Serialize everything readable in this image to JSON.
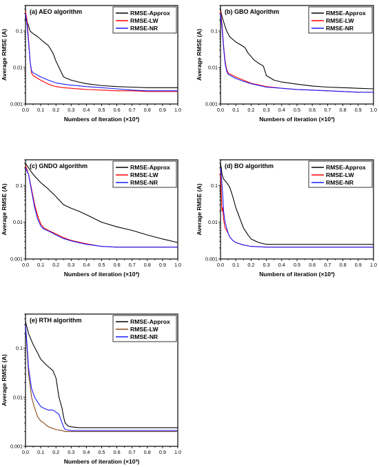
{
  "chart_data": [
    {
      "type": "line",
      "title": "(a)   AEO algorithm",
      "xlabel": "Numbers of Iteration (×10³)",
      "ylabel": "Average RMSE (A)",
      "xlim": [
        0,
        1.0
      ],
      "ylim": [
        0.001,
        0.5
      ],
      "yscale": "log",
      "xticks": [
        "0.0",
        "0.1",
        "0.2",
        "0.3",
        "0.4",
        "0.5",
        "0.6",
        "0.7",
        "0.8",
        "0.9",
        "1.0"
      ],
      "yticks": [
        "0.001",
        "0.01",
        "0.1"
      ],
      "legend_position": "top-right",
      "series": [
        {
          "name": "RMSE-Approx",
          "color": "#000000",
          "x": [
            0,
            0.005,
            0.01,
            0.02,
            0.03,
            0.05,
            0.08,
            0.12,
            0.15,
            0.18,
            0.2,
            0.22,
            0.25,
            0.3,
            0.35,
            0.4,
            0.5,
            0.6,
            0.7,
            0.8,
            0.9,
            1.0
          ],
          "y": [
            0.4,
            0.2,
            0.18,
            0.14,
            0.1,
            0.085,
            0.07,
            0.05,
            0.04,
            0.025,
            0.015,
            0.01,
            0.0055,
            0.0045,
            0.004,
            0.0036,
            0.0032,
            0.003,
            0.0029,
            0.0028,
            0.0028,
            0.0028
          ]
        },
        {
          "name": "RMSE-LW",
          "color": "#ff0000",
          "x": [
            0,
            0.01,
            0.02,
            0.03,
            0.04,
            0.05,
            0.1,
            0.15,
            0.2,
            0.25,
            0.3,
            0.4,
            0.5,
            0.6,
            0.7,
            0.8,
            0.9,
            1.0
          ],
          "y": [
            0.35,
            0.2,
            0.06,
            0.015,
            0.007,
            0.006,
            0.0045,
            0.0035,
            0.003,
            0.0028,
            0.0027,
            0.0025,
            0.0024,
            0.0023,
            0.0023,
            0.0022,
            0.0022,
            0.0022
          ]
        },
        {
          "name": "RMSE-NR",
          "color": "#1a1aff",
          "x": [
            0,
            0.01,
            0.02,
            0.03,
            0.04,
            0.05,
            0.1,
            0.15,
            0.2,
            0.25,
            0.3,
            0.4,
            0.5,
            0.6,
            0.7,
            0.8,
            0.9,
            1.0
          ],
          "y": [
            0.3,
            0.15,
            0.05,
            0.015,
            0.008,
            0.0072,
            0.0055,
            0.0045,
            0.0038,
            0.0035,
            0.0033,
            0.003,
            0.0028,
            0.0026,
            0.0024,
            0.0023,
            0.0023,
            0.0023
          ]
        }
      ]
    },
    {
      "type": "line",
      "title": "(b)   GBO Algorithm",
      "xlabel": "Numbers of iteration (×10³)",
      "ylabel": "Average RMSE (A)",
      "xlim": [
        0,
        1.0
      ],
      "ylim": [
        0.001,
        0.5
      ],
      "yscale": "log",
      "xticks": [
        "0.0",
        "0.1",
        "0.2",
        "0.3",
        "0.4",
        "0.5",
        "0.6",
        "0.7",
        "0.8",
        "0.9",
        "1.0"
      ],
      "yticks": [
        "0.001",
        "0.01",
        "0.1"
      ],
      "legend_position": "top-right",
      "series": [
        {
          "name": "RMSE-Approx",
          "color": "#000000",
          "x": [
            0,
            0.005,
            0.01,
            0.02,
            0.04,
            0.06,
            0.1,
            0.14,
            0.16,
            0.18,
            0.2,
            0.22,
            0.25,
            0.28,
            0.3,
            0.35,
            0.4,
            0.5,
            0.6,
            0.7,
            0.8,
            0.9,
            1.0
          ],
          "y": [
            0.4,
            0.3,
            0.25,
            0.18,
            0.1,
            0.07,
            0.05,
            0.04,
            0.035,
            0.025,
            0.02,
            0.016,
            0.013,
            0.011,
            0.006,
            0.0045,
            0.004,
            0.0035,
            0.0031,
            0.0029,
            0.0028,
            0.0027,
            0.0026
          ]
        },
        {
          "name": "RMSE-LW",
          "color": "#ff0000",
          "x": [
            0,
            0.01,
            0.02,
            0.03,
            0.04,
            0.05,
            0.1,
            0.15,
            0.2,
            0.3,
            0.4,
            0.5,
            0.6,
            0.7,
            0.8,
            0.9,
            1.0
          ],
          "y": [
            0.35,
            0.15,
            0.04,
            0.015,
            0.009,
            0.007,
            0.0055,
            0.0045,
            0.0037,
            0.003,
            0.0027,
            0.0025,
            0.0024,
            0.0023,
            0.0022,
            0.0021,
            0.0021
          ]
        },
        {
          "name": "RMSE-NR",
          "color": "#1a1aff",
          "x": [
            0,
            0.01,
            0.02,
            0.03,
            0.04,
            0.05,
            0.1,
            0.15,
            0.2,
            0.3,
            0.4,
            0.5,
            0.6,
            0.7,
            0.8,
            0.9,
            1.0
          ],
          "y": [
            0.3,
            0.12,
            0.035,
            0.013,
            0.008,
            0.0065,
            0.005,
            0.0042,
            0.0036,
            0.0029,
            0.0027,
            0.0025,
            0.0024,
            0.0023,
            0.0022,
            0.0021,
            0.0021
          ]
        }
      ]
    },
    {
      "type": "line",
      "title": "(c)   GNDO algorithm",
      "xlabel": "Numbers of iteration (×10³)",
      "ylabel": "Average RMSE (A)",
      "xlim": [
        0,
        1.0
      ],
      "ylim": [
        0.001,
        0.5
      ],
      "yscale": "log",
      "xticks": [
        "0.0",
        "0.1",
        "0.2",
        "0.3",
        "0.4",
        "0.5",
        "0.6",
        "0.7",
        "0.8",
        "0.9",
        "1.0"
      ],
      "yticks": [
        "0.001",
        "0.01",
        "0.1"
      ],
      "legend_position": "top-right",
      "series": [
        {
          "name": "RMSE-Approx",
          "color": "#000000",
          "x": [
            0,
            0.02,
            0.05,
            0.1,
            0.15,
            0.2,
            0.25,
            0.3,
            0.35,
            0.4,
            0.5,
            0.6,
            0.7,
            0.8,
            0.9,
            1.0
          ],
          "y": [
            0.4,
            0.3,
            0.2,
            0.12,
            0.08,
            0.05,
            0.03,
            0.024,
            0.02,
            0.016,
            0.01,
            0.0075,
            0.006,
            0.0045,
            0.0035,
            0.0028
          ]
        },
        {
          "name": "RMSE-LW",
          "color": "#ff0000",
          "x": [
            0,
            0.02,
            0.04,
            0.06,
            0.08,
            0.1,
            0.12,
            0.15,
            0.2,
            0.25,
            0.3,
            0.4,
            0.5,
            0.6,
            0.7,
            0.8,
            0.9,
            1.0
          ],
          "y": [
            0.35,
            0.2,
            0.08,
            0.03,
            0.015,
            0.009,
            0.007,
            0.006,
            0.0048,
            0.0038,
            0.0032,
            0.0026,
            0.0022,
            0.0021,
            0.0021,
            0.0021,
            0.0021,
            0.0021
          ]
        },
        {
          "name": "RMSE-NR",
          "color": "#1a1aff",
          "x": [
            0,
            0.02,
            0.04,
            0.06,
            0.08,
            0.1,
            0.12,
            0.15,
            0.2,
            0.25,
            0.3,
            0.4,
            0.5,
            0.6,
            0.7,
            0.8,
            0.9,
            1.0
          ],
          "y": [
            0.3,
            0.2,
            0.07,
            0.025,
            0.012,
            0.008,
            0.0065,
            0.0058,
            0.0045,
            0.0036,
            0.0031,
            0.0025,
            0.0022,
            0.0021,
            0.0021,
            0.0021,
            0.0021,
            0.0021
          ]
        }
      ]
    },
    {
      "type": "line",
      "title": "(d)   BO algorithm",
      "xlabel": "Numbers of iteration (×10³)",
      "ylabel": "Average RMSE (A)",
      "xlim": [
        0,
        1.0
      ],
      "ylim": [
        0.001,
        0.5
      ],
      "yscale": "log",
      "xticks": [
        "0.0",
        "0.1",
        "0.2",
        "0.3",
        "0.4",
        "0.5",
        "0.6",
        "0.7",
        "0.8",
        "0.9",
        "1.0"
      ],
      "yticks": [
        "0.001",
        "0.01",
        "0.1"
      ],
      "legend_position": "top-right",
      "series": [
        {
          "name": "RMSE-Approx",
          "color": "#000000",
          "x": [
            0,
            0.005,
            0.01,
            0.02,
            0.04,
            0.06,
            0.08,
            0.1,
            0.12,
            0.15,
            0.18,
            0.2,
            0.25,
            0.3,
            0.4,
            0.5,
            0.6,
            0.7,
            0.8,
            0.9,
            1.0
          ],
          "y": [
            0.4,
            0.3,
            0.2,
            0.15,
            0.12,
            0.09,
            0.05,
            0.025,
            0.015,
            0.007,
            0.0045,
            0.0035,
            0.0028,
            0.0025,
            0.0025,
            0.0025,
            0.0025,
            0.0025,
            0.0025,
            0.0025,
            0.0025
          ]
        },
        {
          "name": "RMSE-LW",
          "color": "#ff0000",
          "x": [
            0,
            0.005,
            0.01,
            0.015,
            0.02,
            0.03,
            0.04,
            0.05,
            0.06,
            0.08,
            0.1,
            0.15,
            0.2,
            0.3,
            0.4,
            0.5,
            0.6,
            0.7,
            0.8,
            0.9,
            1.0
          ],
          "y": [
            0.3,
            0.06,
            0.02,
            0.025,
            0.012,
            0.007,
            0.006,
            0.005,
            0.004,
            0.0032,
            0.0028,
            0.0024,
            0.0022,
            0.0021,
            0.0021,
            0.0021,
            0.0021,
            0.0021,
            0.0021,
            0.0021,
            0.0021
          ]
        },
        {
          "name": "RMSE-NR",
          "color": "#1a1aff",
          "x": [
            0,
            0.005,
            0.01,
            0.015,
            0.02,
            0.03,
            0.04,
            0.05,
            0.06,
            0.08,
            0.1,
            0.15,
            0.2,
            0.3,
            0.4,
            0.5,
            0.6,
            0.7,
            0.8,
            0.9,
            1.0
          ],
          "y": [
            0.3,
            0.2,
            0.1,
            0.05,
            0.02,
            0.01,
            0.007,
            0.005,
            0.004,
            0.0032,
            0.0028,
            0.0024,
            0.0022,
            0.0021,
            0.0021,
            0.0021,
            0.0021,
            0.0021,
            0.0021,
            0.0021,
            0.0021
          ]
        }
      ]
    },
    {
      "type": "line",
      "title": "(e)   RTH algorithm",
      "xlabel": "Numbers of iteration (×10³)",
      "ylabel": "Average RMSE (A)",
      "xlim": [
        0,
        1.0
      ],
      "ylim": [
        0.001,
        0.5
      ],
      "yscale": "log",
      "xticks": [
        "0.0",
        "0.1",
        "0.2",
        "0.3",
        "0.4",
        "0.5",
        "0.6",
        "0.7",
        "0.8",
        "0.9",
        "1.0"
      ],
      "yticks": [
        "0.001",
        "0.01",
        "0.1"
      ],
      "legend_position": "top-right",
      "series": [
        {
          "name": "RMSE-Approx",
          "color": "#000000",
          "x": [
            0,
            0.02,
            0.05,
            0.08,
            0.1,
            0.14,
            0.18,
            0.2,
            0.22,
            0.24,
            0.25,
            0.26,
            0.28,
            0.3,
            0.35,
            0.4,
            0.5,
            0.6,
            0.7,
            0.8,
            0.9,
            1.0
          ],
          "y": [
            0.35,
            0.2,
            0.12,
            0.08,
            0.06,
            0.045,
            0.035,
            0.025,
            0.01,
            0.006,
            0.004,
            0.003,
            0.0026,
            0.0025,
            0.0024,
            0.0024,
            0.0024,
            0.0024,
            0.0024,
            0.0024,
            0.0024,
            0.0024
          ]
        },
        {
          "name": "RMSE-LW",
          "color": "#8b4a1a",
          "x": [
            0,
            0.01,
            0.02,
            0.04,
            0.06,
            0.08,
            0.1,
            0.12,
            0.15,
            0.2,
            0.24,
            0.26,
            0.3,
            0.4,
            0.5,
            0.6,
            0.7,
            0.8,
            0.9,
            1.0
          ],
          "y": [
            0.3,
            0.1,
            0.03,
            0.01,
            0.006,
            0.004,
            0.0033,
            0.003,
            0.0025,
            0.0022,
            0.0021,
            0.002,
            0.002,
            0.002,
            0.002,
            0.002,
            0.002,
            0.002,
            0.002,
            0.002
          ]
        },
        {
          "name": "RMSE-NR",
          "color": "#1a1aff",
          "x": [
            0,
            0.01,
            0.02,
            0.04,
            0.06,
            0.08,
            0.1,
            0.12,
            0.15,
            0.18,
            0.2,
            0.22,
            0.24,
            0.25,
            0.26,
            0.3,
            0.4,
            0.5,
            0.6,
            0.7,
            0.8,
            0.9,
            1.0
          ],
          "y": [
            0.3,
            0.12,
            0.04,
            0.015,
            0.01,
            0.008,
            0.0065,
            0.006,
            0.0055,
            0.0055,
            0.005,
            0.0045,
            0.003,
            0.0025,
            0.0022,
            0.0021,
            0.0021,
            0.0021,
            0.0021,
            0.0021,
            0.0021,
            0.0021,
            0.0021
          ]
        }
      ]
    }
  ]
}
